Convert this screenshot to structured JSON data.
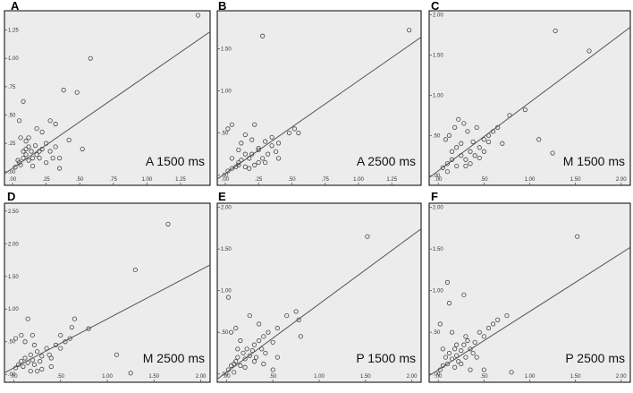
{
  "chart_data": [
    {
      "type": "scatter",
      "letter": "A",
      "title": "A 1500 ms",
      "xlim": [
        -0.06,
        1.47
      ],
      "ylim": [
        -0.12,
        1.42
      ],
      "xticks": [
        ".00",
        ".25",
        ".50",
        ".75",
        "1.00",
        "1.25"
      ],
      "xtick_values": [
        0,
        0.25,
        0.5,
        0.75,
        1.0,
        1.25
      ],
      "yticks": [
        ".00",
        ".25",
        ".50",
        ".75",
        "1.00",
        "1.25"
      ],
      "ytick_values": [
        0,
        0.25,
        0.5,
        0.75,
        1.0,
        1.25
      ],
      "fit_line": {
        "intercept": 0.03,
        "slope": 0.82
      },
      "points": [
        [
          0.02,
          0.04
        ],
        [
          0.05,
          0.08
        ],
        [
          0.04,
          0.1
        ],
        [
          0.06,
          0.06
        ],
        [
          0.08,
          0.12
        ],
        [
          0.1,
          0.15
        ],
        [
          0.12,
          0.1
        ],
        [
          0.08,
          0.18
        ],
        [
          0.1,
          0.2
        ],
        [
          0.12,
          0.22
        ],
        [
          0.15,
          0.12
        ],
        [
          0.18,
          0.15
        ],
        [
          0.2,
          0.18
        ],
        [
          0.22,
          0.2
        ],
        [
          0.25,
          0.25
        ],
        [
          0.28,
          0.18
        ],
        [
          0.3,
          0.12
        ],
        [
          0.32,
          0.22
        ],
        [
          0.35,
          0.12
        ],
        [
          0.05,
          0.45
        ],
        [
          0.08,
          0.62
        ],
        [
          0.1,
          0.27
        ],
        [
          0.12,
          0.3
        ],
        [
          0.18,
          0.38
        ],
        [
          0.22,
          0.35
        ],
        [
          0.28,
          0.45
        ],
        [
          0.32,
          0.42
        ],
        [
          0.38,
          0.72
        ],
        [
          0.42,
          0.28
        ],
        [
          0.48,
          0.7
        ],
        [
          0.52,
          0.2
        ],
        [
          0.58,
          1.0
        ],
        [
          1.38,
          1.38
        ],
        [
          0.15,
          0.05
        ],
        [
          0.25,
          0.08
        ],
        [
          0.14,
          0.18
        ],
        [
          0.2,
          0.12
        ],
        [
          0.17,
          0.23
        ],
        [
          0.06,
          0.3
        ],
        [
          0.35,
          0.03
        ]
      ]
    },
    {
      "type": "scatter",
      "letter": "B",
      "title": "A 2500 ms",
      "xlim": [
        -0.06,
        1.47
      ],
      "ylim": [
        -0.12,
        1.95
      ],
      "xticks": [
        ".00",
        ".25",
        ".50",
        ".75",
        "1.00",
        "1.25"
      ],
      "xtick_values": [
        0,
        0.25,
        0.5,
        0.75,
        1.0,
        1.25
      ],
      "yticks": [
        ".00",
        ".50",
        "1.00",
        "1.50"
      ],
      "ytick_values": [
        0,
        0.5,
        1.0,
        1.5
      ],
      "fit_line": {
        "intercept": 0.02,
        "slope": 1.1
      },
      "points": [
        [
          0.02,
          0.05
        ],
        [
          0.05,
          0.08
        ],
        [
          0.08,
          0.1
        ],
        [
          0.1,
          0.15
        ],
        [
          0.12,
          0.18
        ],
        [
          0.15,
          0.1
        ],
        [
          0.18,
          0.2
        ],
        [
          0.2,
          0.25
        ],
        [
          0.22,
          0.12
        ],
        [
          0.25,
          0.3
        ],
        [
          0.28,
          0.2
        ],
        [
          0.3,
          0.15
        ],
        [
          0.32,
          0.25
        ],
        [
          0.35,
          0.35
        ],
        [
          0.38,
          0.28
        ],
        [
          0.02,
          0.55
        ],
        [
          0.05,
          0.6
        ],
        [
          0.1,
          0.3
        ],
        [
          0.12,
          0.38
        ],
        [
          0.15,
          0.48
        ],
        [
          0.2,
          0.42
        ],
        [
          0.22,
          0.6
        ],
        [
          0.25,
          0.32
        ],
        [
          0.3,
          0.4
        ],
        [
          0.35,
          0.45
        ],
        [
          0.4,
          0.38
        ],
        [
          0.48,
          0.5
        ],
        [
          0.52,
          0.55
        ],
        [
          0.28,
          1.65
        ],
        [
          0.15,
          0.25
        ],
        [
          0.1,
          0.12
        ],
        [
          0.05,
          0.2
        ],
        [
          0.18,
          0.08
        ],
        [
          0.25,
          0.15
        ],
        [
          0.4,
          0.2
        ],
        [
          0.55,
          0.5
        ],
        [
          1.38,
          1.72
        ]
      ]
    },
    {
      "type": "scatter",
      "letter": "C",
      "title": "M 1500 ms",
      "xlim": [
        -0.1,
        2.1
      ],
      "ylim": [
        -0.12,
        2.05
      ],
      "xticks": [
        ".00",
        ".50",
        "1.00",
        "1.50",
        "2.00"
      ],
      "xtick_values": [
        0,
        0.5,
        1.0,
        1.5,
        2.0
      ],
      "yticks": [
        ".00",
        ".50",
        "1.00",
        "1.50",
        "2.00"
      ],
      "ytick_values": [
        0,
        0.5,
        1.0,
        1.5,
        2.0
      ],
      "fit_line": {
        "intercept": 0.06,
        "slope": 0.85
      },
      "points": [
        [
          0.05,
          0.1
        ],
        [
          0.1,
          0.15
        ],
        [
          0.15,
          0.2
        ],
        [
          0.2,
          0.12
        ],
        [
          0.25,
          0.25
        ],
        [
          0.3,
          0.2
        ],
        [
          0.35,
          0.3
        ],
        [
          0.4,
          0.25
        ],
        [
          0.45,
          0.35
        ],
        [
          0.5,
          0.45
        ],
        [
          0.55,
          0.5
        ],
        [
          0.6,
          0.55
        ],
        [
          0.08,
          0.45
        ],
        [
          0.12,
          0.5
        ],
        [
          0.18,
          0.6
        ],
        [
          0.22,
          0.7
        ],
        [
          0.28,
          0.65
        ],
        [
          0.32,
          0.55
        ],
        [
          0.38,
          0.42
        ],
        [
          0.42,
          0.6
        ],
        [
          0.5,
          0.3
        ],
        [
          0.55,
          0.42
        ],
        [
          0.65,
          0.6
        ],
        [
          0.7,
          0.4
        ],
        [
          0.78,
          0.75
        ],
        [
          0.95,
          0.82
        ],
        [
          1.1,
          0.45
        ],
        [
          1.25,
          0.28
        ],
        [
          1.28,
          1.8
        ],
        [
          1.65,
          1.55
        ],
        [
          0.15,
          0.3
        ],
        [
          0.25,
          0.4
        ],
        [
          0.3,
          0.12
        ],
        [
          0.1,
          0.05
        ],
        [
          0.2,
          0.35
        ],
        [
          0.35,
          0.15
        ],
        [
          0.45,
          0.22
        ]
      ]
    },
    {
      "type": "scatter",
      "letter": "D",
      "title": "M 2500 ms",
      "xlim": [
        -0.1,
        2.1
      ],
      "ylim": [
        -0.12,
        2.62
      ],
      "xticks": [
        ".00",
        ".50",
        "1.00",
        "1.50",
        "2.00"
      ],
      "xtick_values": [
        0,
        0.5,
        1.0,
        1.5,
        2.0
      ],
      "yticks": [
        ".00",
        ".50",
        "1.00",
        "1.50",
        "2.00",
        "2.50"
      ],
      "ytick_values": [
        0,
        0.5,
        1.0,
        1.5,
        2.0,
        2.5
      ],
      "fit_line": {
        "intercept": 0.1,
        "slope": 0.75
      },
      "points": [
        [
          0.02,
          0.1
        ],
        [
          0.05,
          0.15
        ],
        [
          0.08,
          0.2
        ],
        [
          0.1,
          0.12
        ],
        [
          0.12,
          0.25
        ],
        [
          0.15,
          0.18
        ],
        [
          0.18,
          0.3
        ],
        [
          0.2,
          0.22
        ],
        [
          0.22,
          0.15
        ],
        [
          0.25,
          0.35
        ],
        [
          0.28,
          0.2
        ],
        [
          0.3,
          0.28
        ],
        [
          0.35,
          0.4
        ],
        [
          0.38,
          0.3
        ],
        [
          0.4,
          0.25
        ],
        [
          0.45,
          0.45
        ],
        [
          0.5,
          0.4
        ],
        [
          0.55,
          0.5
        ],
        [
          0.6,
          0.55
        ],
        [
          0.02,
          0.55
        ],
        [
          0.08,
          0.6
        ],
        [
          0.12,
          0.5
        ],
        [
          0.15,
          0.85
        ],
        [
          0.2,
          0.6
        ],
        [
          0.25,
          0.05
        ],
        [
          0.3,
          0.08
        ],
        [
          0.62,
          0.72
        ],
        [
          0.65,
          0.85
        ],
        [
          0.8,
          0.7
        ],
        [
          1.1,
          0.3
        ],
        [
          1.25,
          0.02
        ],
        [
          1.3,
          1.6
        ],
        [
          1.65,
          2.3
        ],
        [
          0.18,
          0.05
        ],
        [
          0.22,
          0.45
        ],
        [
          0.4,
          0.12
        ],
        [
          0.5,
          0.6
        ]
      ]
    },
    {
      "type": "scatter",
      "letter": "E",
      "title": "P 1500 ms",
      "xlim": [
        -0.1,
        2.1
      ],
      "ylim": [
        -0.1,
        2.05
      ],
      "xticks": [
        ".00",
        ".50",
        "1.00",
        "1.50",
        "2.00"
      ],
      "xtick_values": [
        0,
        0.5,
        1.0,
        1.5,
        2.0
      ],
      "yticks": [
        ".00",
        ".50",
        "1.00",
        "1.50",
        "2.00"
      ],
      "ytick_values": [
        0,
        0.5,
        1.0,
        1.5,
        2.0
      ],
      "fit_line": {
        "intercept": 0.02,
        "slope": 0.82
      },
      "points": [
        [
          0.02,
          0.05
        ],
        [
          0.05,
          0.1
        ],
        [
          0.08,
          0.12
        ],
        [
          0.1,
          0.15
        ],
        [
          0.12,
          0.2
        ],
        [
          0.15,
          0.1
        ],
        [
          0.18,
          0.25
        ],
        [
          0.2,
          0.18
        ],
        [
          0.22,
          0.3
        ],
        [
          0.25,
          0.22
        ],
        [
          0.28,
          0.28
        ],
        [
          0.3,
          0.35
        ],
        [
          0.32,
          0.2
        ],
        [
          0.35,
          0.4
        ],
        [
          0.38,
          0.3
        ],
        [
          0.4,
          0.45
        ],
        [
          0.42,
          0.25
        ],
        [
          0.45,
          0.5
        ],
        [
          0.5,
          0.38
        ],
        [
          0.55,
          0.55
        ],
        [
          0.02,
          0.92
        ],
        [
          0.05,
          0.5
        ],
        [
          0.1,
          0.55
        ],
        [
          0.15,
          0.4
        ],
        [
          0.25,
          0.7
        ],
        [
          0.35,
          0.6
        ],
        [
          0.5,
          0.05
        ],
        [
          0.55,
          0.2
        ],
        [
          0.65,
          0.7
        ],
        [
          0.75,
          0.75
        ],
        [
          0.78,
          0.65
        ],
        [
          0.8,
          0.45
        ],
        [
          1.52,
          1.65
        ],
        [
          0.08,
          0.02
        ],
        [
          0.2,
          0.08
        ],
        [
          0.3,
          0.15
        ],
        [
          0.12,
          0.3
        ],
        [
          0.4,
          0.12
        ]
      ]
    },
    {
      "type": "scatter",
      "letter": "F",
      "title": "P 2500 ms",
      "xlim": [
        -0.1,
        2.1
      ],
      "ylim": [
        -0.1,
        2.05
      ],
      "xticks": [
        ".00",
        ".50",
        "1.00",
        "1.50",
        "2.00"
      ],
      "xtick_values": [
        0,
        0.5,
        1.0,
        1.5,
        2.0
      ],
      "yticks": [
        ".00",
        ".50",
        "1.00",
        "1.50",
        "2.00"
      ],
      "ytick_values": [
        0,
        0.5,
        1.0,
        1.5,
        2.0
      ],
      "fit_line": {
        "intercept": 0.05,
        "slope": 0.7
      },
      "points": [
        [
          0.02,
          0.05
        ],
        [
          0.05,
          0.1
        ],
        [
          0.08,
          0.2
        ],
        [
          0.1,
          0.12
        ],
        [
          0.12,
          0.25
        ],
        [
          0.15,
          0.18
        ],
        [
          0.18,
          0.3
        ],
        [
          0.2,
          0.22
        ],
        [
          0.22,
          0.15
        ],
        [
          0.25,
          0.28
        ],
        [
          0.28,
          0.35
        ],
        [
          0.3,
          0.2
        ],
        [
          0.32,
          0.4
        ],
        [
          0.35,
          0.3
        ],
        [
          0.38,
          0.25
        ],
        [
          0.4,
          0.38
        ],
        [
          0.45,
          0.5
        ],
        [
          0.5,
          0.45
        ],
        [
          0.55,
          0.55
        ],
        [
          0.6,
          0.6
        ],
        [
          0.02,
          0.6
        ],
        [
          0.05,
          0.3
        ],
        [
          0.1,
          1.1
        ],
        [
          0.12,
          0.85
        ],
        [
          0.15,
          0.5
        ],
        [
          0.2,
          0.35
        ],
        [
          0.28,
          0.95
        ],
        [
          0.35,
          0.05
        ],
        [
          0.5,
          0.05
        ],
        [
          0.65,
          0.65
        ],
        [
          0.75,
          0.7
        ],
        [
          0.8,
          0.02
        ],
        [
          1.52,
          1.65
        ],
        [
          0.25,
          0.12
        ],
        [
          0.42,
          0.2
        ],
        [
          0.18,
          0.08
        ],
        [
          0.3,
          0.45
        ]
      ]
    }
  ]
}
